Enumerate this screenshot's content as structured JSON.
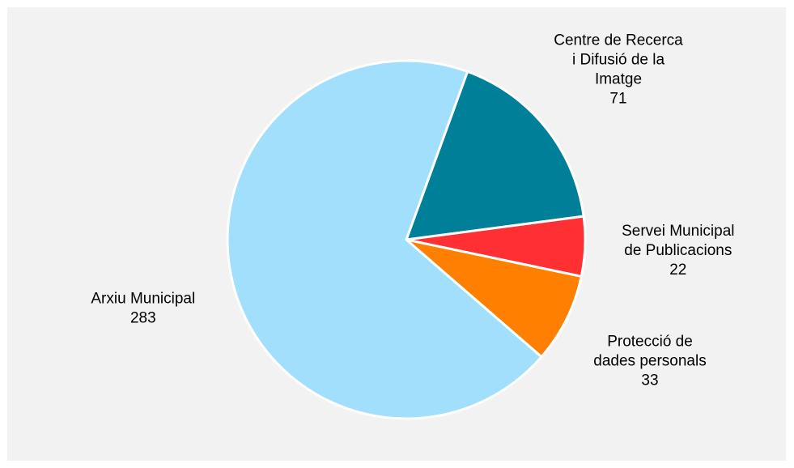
{
  "chart_data": {
    "type": "pie",
    "title": "",
    "slices": [
      {
        "label_lines": [
          "Centre de Recerca",
          "i Difusió de la",
          "Imatge"
        ],
        "value": 71,
        "color": "#007f99"
      },
      {
        "label_lines": [
          "Servei Municipal",
          "de Publicacions"
        ],
        "value": 22,
        "color": "#ff3033"
      },
      {
        "label_lines": [
          "Protecció de",
          "dades personals"
        ],
        "value": 33,
        "color": "#ff7f00"
      },
      {
        "label_lines": [
          "Arxiu Municipal"
        ],
        "value": 283,
        "color": "#a1dffc"
      }
    ]
  }
}
